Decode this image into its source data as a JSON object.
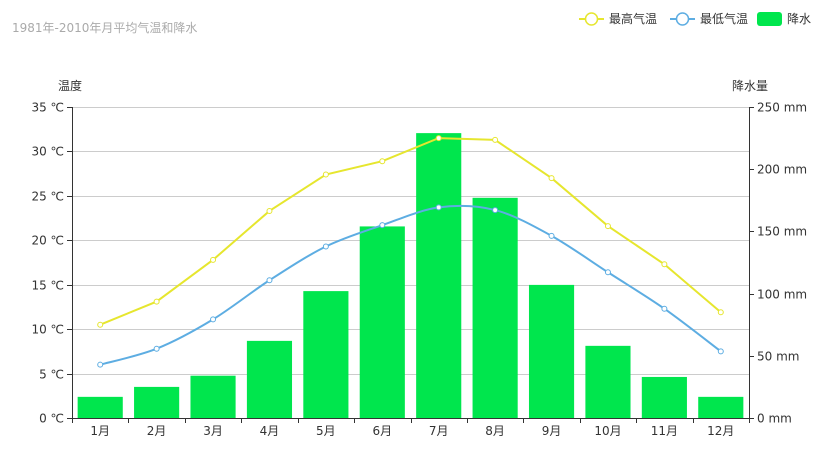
{
  "chart_data": {
    "type": "bar",
    "title": "1981年-2010年月平均气温和降水",
    "categories": [
      "1月",
      "2月",
      "3月",
      "4月",
      "5月",
      "6月",
      "7月",
      "8月",
      "9月",
      "10月",
      "11月",
      "12月"
    ],
    "y_left": {
      "name": "温度",
      "range": [
        0,
        35
      ],
      "ticks": [
        "0 ℃",
        "5 ℃",
        "10 ℃",
        "15 ℃",
        "20 ℃",
        "25 ℃",
        "30 ℃",
        "35 ℃"
      ],
      "tick_values": [
        0,
        5,
        10,
        15,
        20,
        25,
        30,
        35
      ]
    },
    "y_right": {
      "name": "降水量",
      "range": [
        0,
        250
      ],
      "ticks": [
        "0 mm",
        "50 mm",
        "100 mm",
        "150 mm",
        "200 mm",
        "250 mm"
      ],
      "tick_values": [
        0,
        50,
        100,
        150,
        200,
        250
      ]
    },
    "grid": true,
    "legend_position": "top-right",
    "series": [
      {
        "name": "最高气温",
        "type": "line",
        "axis": "left",
        "color": "#e6e62e",
        "smooth": false,
        "values": [
          10.5,
          13.1,
          17.8,
          23.3,
          27.4,
          28.9,
          31.5,
          31.3,
          27.0,
          21.6,
          17.3,
          11.9
        ]
      },
      {
        "name": "最低气温",
        "type": "line",
        "axis": "left",
        "color": "#5dade2",
        "smooth": true,
        "values": [
          6.0,
          7.8,
          11.1,
          15.5,
          19.3,
          21.7,
          23.7,
          23.4,
          20.5,
          16.4,
          12.3,
          7.5
        ]
      },
      {
        "name": "降水",
        "type": "bar",
        "axis": "right",
        "color": "#00e64d",
        "values": [
          17,
          25,
          34,
          62,
          102,
          154,
          229,
          177,
          107,
          58,
          33,
          17
        ]
      }
    ]
  }
}
